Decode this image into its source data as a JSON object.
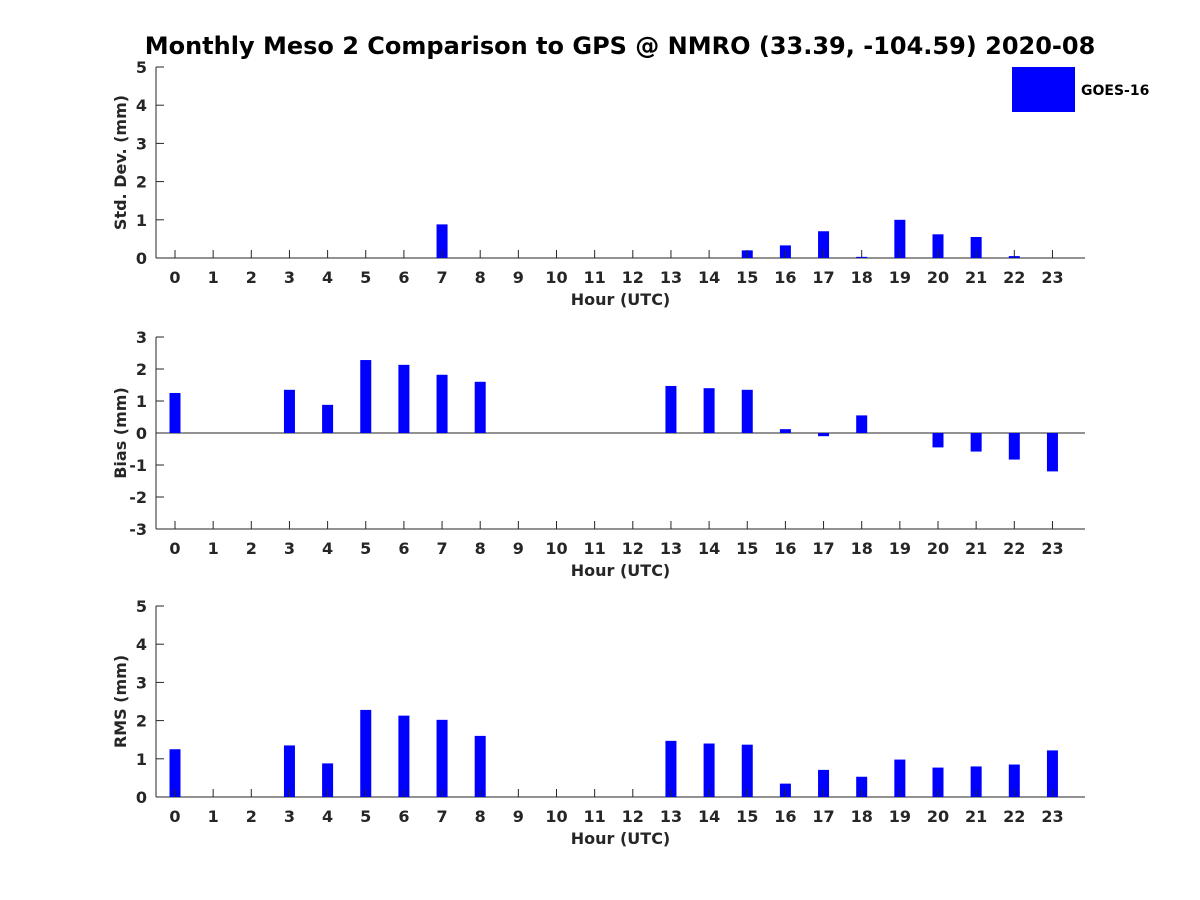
{
  "chart_data": {
    "type": "bar",
    "title": "Monthly Meso 2 Comparison to GPS @ NMRO (33.39, -104.59) 2020-08",
    "bar_color": "#0000ff",
    "legend": {
      "label": "GOES-16",
      "location": "top-right"
    },
    "categories": [
      "0",
      "1",
      "2",
      "3",
      "4",
      "5",
      "6",
      "7",
      "8",
      "9",
      "10",
      "11",
      "12",
      "13",
      "14",
      "15",
      "16",
      "17",
      "18",
      "19",
      "20",
      "21",
      "22",
      "23"
    ],
    "subplots": [
      {
        "ylabel": "Std. Dev. (mm)",
        "xlabel": "Hour (UTC)",
        "ylim": [
          0,
          5
        ],
        "yticks": [
          0,
          1,
          2,
          3,
          4,
          5
        ],
        "values": [
          0,
          0,
          0,
          0,
          0,
          0,
          0,
          0.88,
          0,
          0,
          0,
          0,
          0,
          0,
          0,
          0.2,
          0.33,
          0.7,
          0.03,
          1.0,
          0.62,
          0.55,
          0.05,
          0
        ]
      },
      {
        "ylabel": "Bias (mm)",
        "xlabel": "Hour (UTC)",
        "ylim": [
          -3,
          3
        ],
        "yticks": [
          -3,
          -2,
          -1,
          0,
          1,
          2,
          3
        ],
        "values": [
          1.25,
          0,
          0,
          1.35,
          0.88,
          2.28,
          2.13,
          1.82,
          1.6,
          0,
          0,
          0,
          0,
          1.47,
          1.4,
          1.35,
          0.12,
          -0.1,
          0.55,
          0,
          -0.45,
          -0.58,
          -0.83,
          -1.2
        ]
      },
      {
        "ylabel": "RMS (mm)",
        "xlabel": "Hour (UTC)",
        "ylim": [
          0,
          5
        ],
        "yticks": [
          0,
          1,
          2,
          3,
          4,
          5
        ],
        "values": [
          1.25,
          0,
          0,
          1.35,
          0.88,
          2.28,
          2.13,
          2.02,
          1.6,
          0,
          0,
          0,
          0,
          1.47,
          1.4,
          1.37,
          0.35,
          0.71,
          0.53,
          0.98,
          0.77,
          0.8,
          0.85,
          1.22
        ]
      }
    ]
  }
}
